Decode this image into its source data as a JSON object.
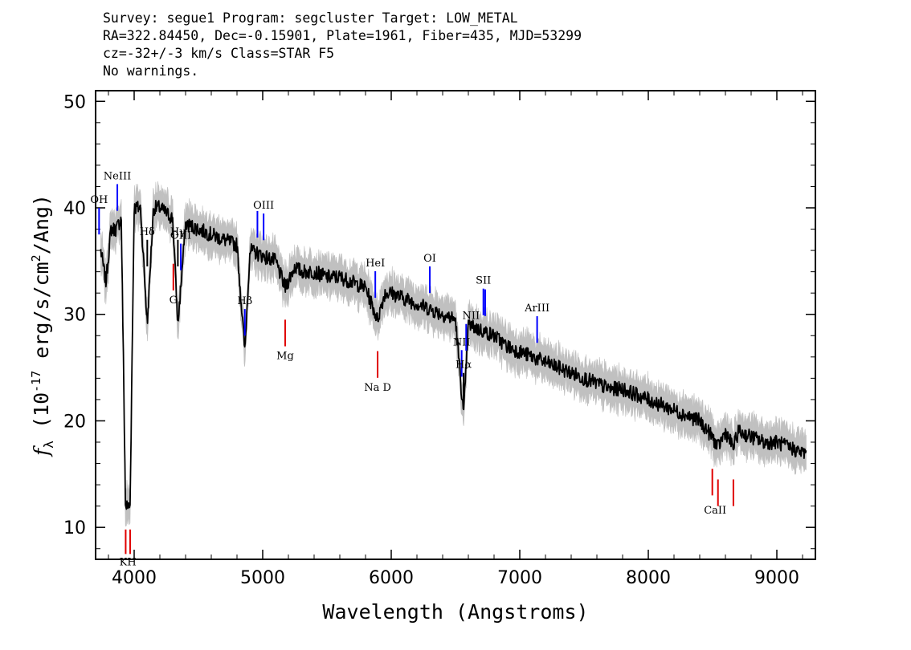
{
  "header": {
    "line1": "Survey: segue1 Program: segcluster Target: LOW_METAL",
    "line2": "RA=322.84450, Dec=-0.15901, Plate=1961, Fiber=435, MJD=53299",
    "line3": "cz=-32+/-3 km/s Class=STAR F5",
    "line4": "No warnings."
  },
  "chart_data": {
    "type": "line",
    "xlabel": "Wavelength (Angstroms)",
    "ylabel": "f_λ (10^-17 erg/s/cm^2/Ang)",
    "xlim": [
      3700,
      9300
    ],
    "ylim": [
      7,
      51
    ],
    "x_ticks": [
      4000,
      5000,
      6000,
      7000,
      8000,
      9000
    ],
    "y_ticks": [
      10,
      20,
      30,
      40,
      50
    ],
    "grid": false,
    "colors": {
      "spectrum": "#000000",
      "error": "#c0c0c0",
      "emission": "#0000ff",
      "absorption": "#e00000"
    },
    "series": [
      {
        "role": "spectrum",
        "x": [
          3740,
          3780,
          3820,
          3860,
          3900,
          3933,
          3968,
          4000,
          4050,
          4102,
          4150,
          4200,
          4250,
          4300,
          4340,
          4400,
          4500,
          4600,
          4700,
          4800,
          4861,
          4900,
          5000,
          5100,
          5175,
          5250,
          5300,
          5400,
          5500,
          5600,
          5700,
          5800,
          5893,
          5950,
          6000,
          6100,
          6200,
          6300,
          6400,
          6500,
          6563,
          6600,
          6700,
          6800,
          6900,
          7000,
          7100,
          7200,
          7300,
          7400,
          7500,
          7600,
          7700,
          7800,
          7900,
          8000,
          8100,
          8200,
          8300,
          8400,
          8498,
          8542,
          8600,
          8662,
          8700,
          8800,
          8900,
          9000,
          9100,
          9200,
          9230
        ],
        "y": [
          36,
          33,
          38,
          38,
          39,
          12,
          12,
          40,
          40,
          29,
          40,
          40,
          39.5,
          39,
          29,
          38.5,
          38,
          37.5,
          37,
          36.5,
          26.5,
          36,
          35.5,
          35,
          32.5,
          34.5,
          34,
          34,
          33.5,
          33.5,
          33,
          32.5,
          29.5,
          32,
          32,
          31.5,
          31,
          30.5,
          30,
          29.5,
          20.5,
          29,
          28.5,
          28,
          27,
          26.5,
          26,
          25.5,
          25,
          24.5,
          24,
          23.5,
          23,
          23,
          22.5,
          22,
          21.5,
          21,
          20.5,
          20,
          18.5,
          17.5,
          19,
          17.5,
          19,
          18.5,
          18,
          18,
          17.5,
          17,
          17
        ]
      }
    ],
    "emission_lines": [
      {
        "label": "OH",
        "x": 3727
      },
      {
        "label": "NeIII",
        "x": 3869
      },
      {
        "label": "Hδ",
        "x": 4102
      },
      {
        "label": "Hγ",
        "x": 4340
      },
      {
        "label": "OIII",
        "x": 4363
      },
      {
        "label": "Hβ",
        "x": 4861
      },
      {
        "label": "OIII",
        "x": 4959
      },
      {
        "label": "OIII",
        "x": 5007
      },
      {
        "label": "HeI",
        "x": 5876
      },
      {
        "label": "OI",
        "x": 6300
      },
      {
        "label": "NII",
        "x": 6548
      },
      {
        "label": "Hα",
        "x": 6563
      },
      {
        "label": "NII",
        "x": 6583
      },
      {
        "label": "SII",
        "x": 6717
      },
      {
        "label": "SII",
        "x": 6731
      },
      {
        "label": "ArIII",
        "x": 7135
      }
    ],
    "absorption_lines": [
      {
        "label": "K",
        "x": 3934
      },
      {
        "label": "H",
        "x": 3969
      },
      {
        "label": "G",
        "x": 4305
      },
      {
        "label": "Mg",
        "x": 5175
      },
      {
        "label": "Na D",
        "x": 5894
      },
      {
        "label": "CaII",
        "x": 8498
      },
      {
        "label": "CaII",
        "x": 8542
      },
      {
        "label": "CaII",
        "x": 8662
      }
    ]
  }
}
